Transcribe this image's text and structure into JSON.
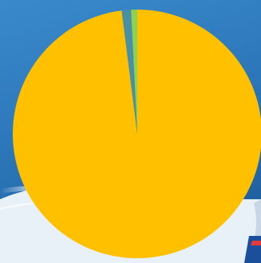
{
  "background": {
    "gradient_top": "#2f7fc0",
    "gradient_bottom": "#1f5f9e",
    "swoosh_color": "#e8f1f8",
    "corner_badge_color": "#1b4f9c"
  },
  "chart_data": {
    "type": "pie",
    "title": "",
    "start_angle_deg": 0,
    "direction": "clockwise",
    "legend": "none",
    "data_labels": false,
    "slices": [
      {
        "value": 98.0,
        "color": "#ffc000"
      },
      {
        "value": 1.2,
        "color": "#4a90a4"
      },
      {
        "value": 0.8,
        "color": "#92d050"
      }
    ]
  }
}
